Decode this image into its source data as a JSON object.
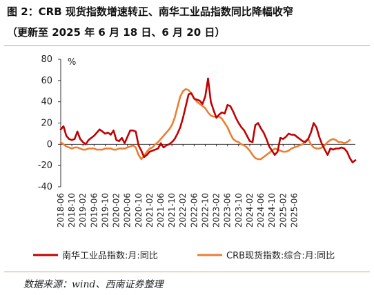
{
  "header": {
    "title": "图 2：CRB 现货指数增速转正、南华工业品指数同比降幅收窄",
    "subtitle": "（更新至 2025 年 6 月 18 日、6 月 20 日）"
  },
  "footer": {
    "source": "数据来源：wind、西南证券整理"
  },
  "colors": {
    "nanhua": "#c00000",
    "crb": "#ed7d31",
    "rule": "#d9a06a"
  },
  "chart_data": {
    "type": "line",
    "ylabel": "%",
    "ylim": [
      -40,
      80
    ],
    "yticks": [
      "80",
      "60",
      "40",
      "20",
      "0",
      "-20",
      "-40"
    ],
    "x_tick_labels": [
      "2018-06",
      "2018-10",
      "2019-02",
      "2019-06",
      "2019-10",
      "2020-02",
      "2020-06",
      "2020-10",
      "2021-02",
      "2021-06",
      "2021-10",
      "2022-02",
      "2022-06",
      "2022-10",
      "2023-02",
      "2023-06",
      "2023-10",
      "2024-02",
      "2024-06",
      "2024-10",
      "2025-02",
      "2025-06"
    ],
    "x_start": "2018-06",
    "legend_position": "bottom",
    "grid": false,
    "series": [
      {
        "name": "南华工业品指数:月:同比",
        "color": "#c00000",
        "values": [
          14,
          17,
          8,
          5,
          4,
          5,
          12,
          5,
          2,
          0,
          4,
          6,
          8,
          11,
          14,
          12,
          10,
          11,
          9,
          13,
          4,
          3,
          6,
          1,
          7,
          13,
          13,
          12,
          -1,
          -6,
          -12,
          -10,
          -7,
          -6,
          -5,
          -4,
          1,
          -3,
          -1,
          0,
          2,
          5,
          10,
          16,
          25,
          36,
          47,
          48,
          43,
          42,
          41,
          38,
          45,
          62,
          40,
          32,
          25,
          28,
          30,
          29,
          37,
          36,
          31,
          25,
          20,
          16,
          13,
          8,
          3,
          2,
          18,
          20,
          15,
          11,
          5,
          -2,
          -6,
          -10,
          -7,
          6,
          5,
          7,
          10,
          9,
          9,
          7,
          5,
          3,
          2,
          5,
          11,
          20,
          16,
          7,
          0,
          -5,
          -10,
          -4,
          -5,
          -4,
          -4,
          -3,
          -4,
          -7,
          -13,
          -17,
          -15
        ]
      },
      {
        "name": "CRB现货指数:综合:月:同比",
        "color": "#ed7d31",
        "values": [
          2,
          0,
          -2,
          -3,
          -4,
          -3,
          -3,
          -4,
          -5,
          -5,
          -4,
          -4,
          -4,
          -5,
          -5,
          -5,
          -4,
          -4,
          -4,
          -5,
          -5,
          -4,
          -4,
          -4,
          -3,
          -2,
          -1,
          -3,
          -10,
          -14,
          -11,
          -7,
          -4,
          -3,
          0,
          2,
          5,
          8,
          11,
          14,
          18,
          25,
          35,
          45,
          50,
          52,
          51,
          48,
          43,
          40,
          38,
          36,
          34,
          30,
          27,
          26,
          26,
          26,
          24,
          20,
          16,
          10,
          5,
          3,
          2,
          0,
          -1,
          -3,
          -6,
          -10,
          -13,
          -14,
          -14,
          -12,
          -10,
          -8,
          -6,
          -4,
          -5,
          -6,
          -7,
          -7,
          -6,
          -4,
          -3,
          -2,
          -1,
          0,
          3,
          5,
          0,
          -3,
          -4,
          -4,
          -3,
          -1,
          2,
          4,
          5,
          4,
          2,
          2,
          1,
          2,
          4
        ]
      }
    ]
  }
}
